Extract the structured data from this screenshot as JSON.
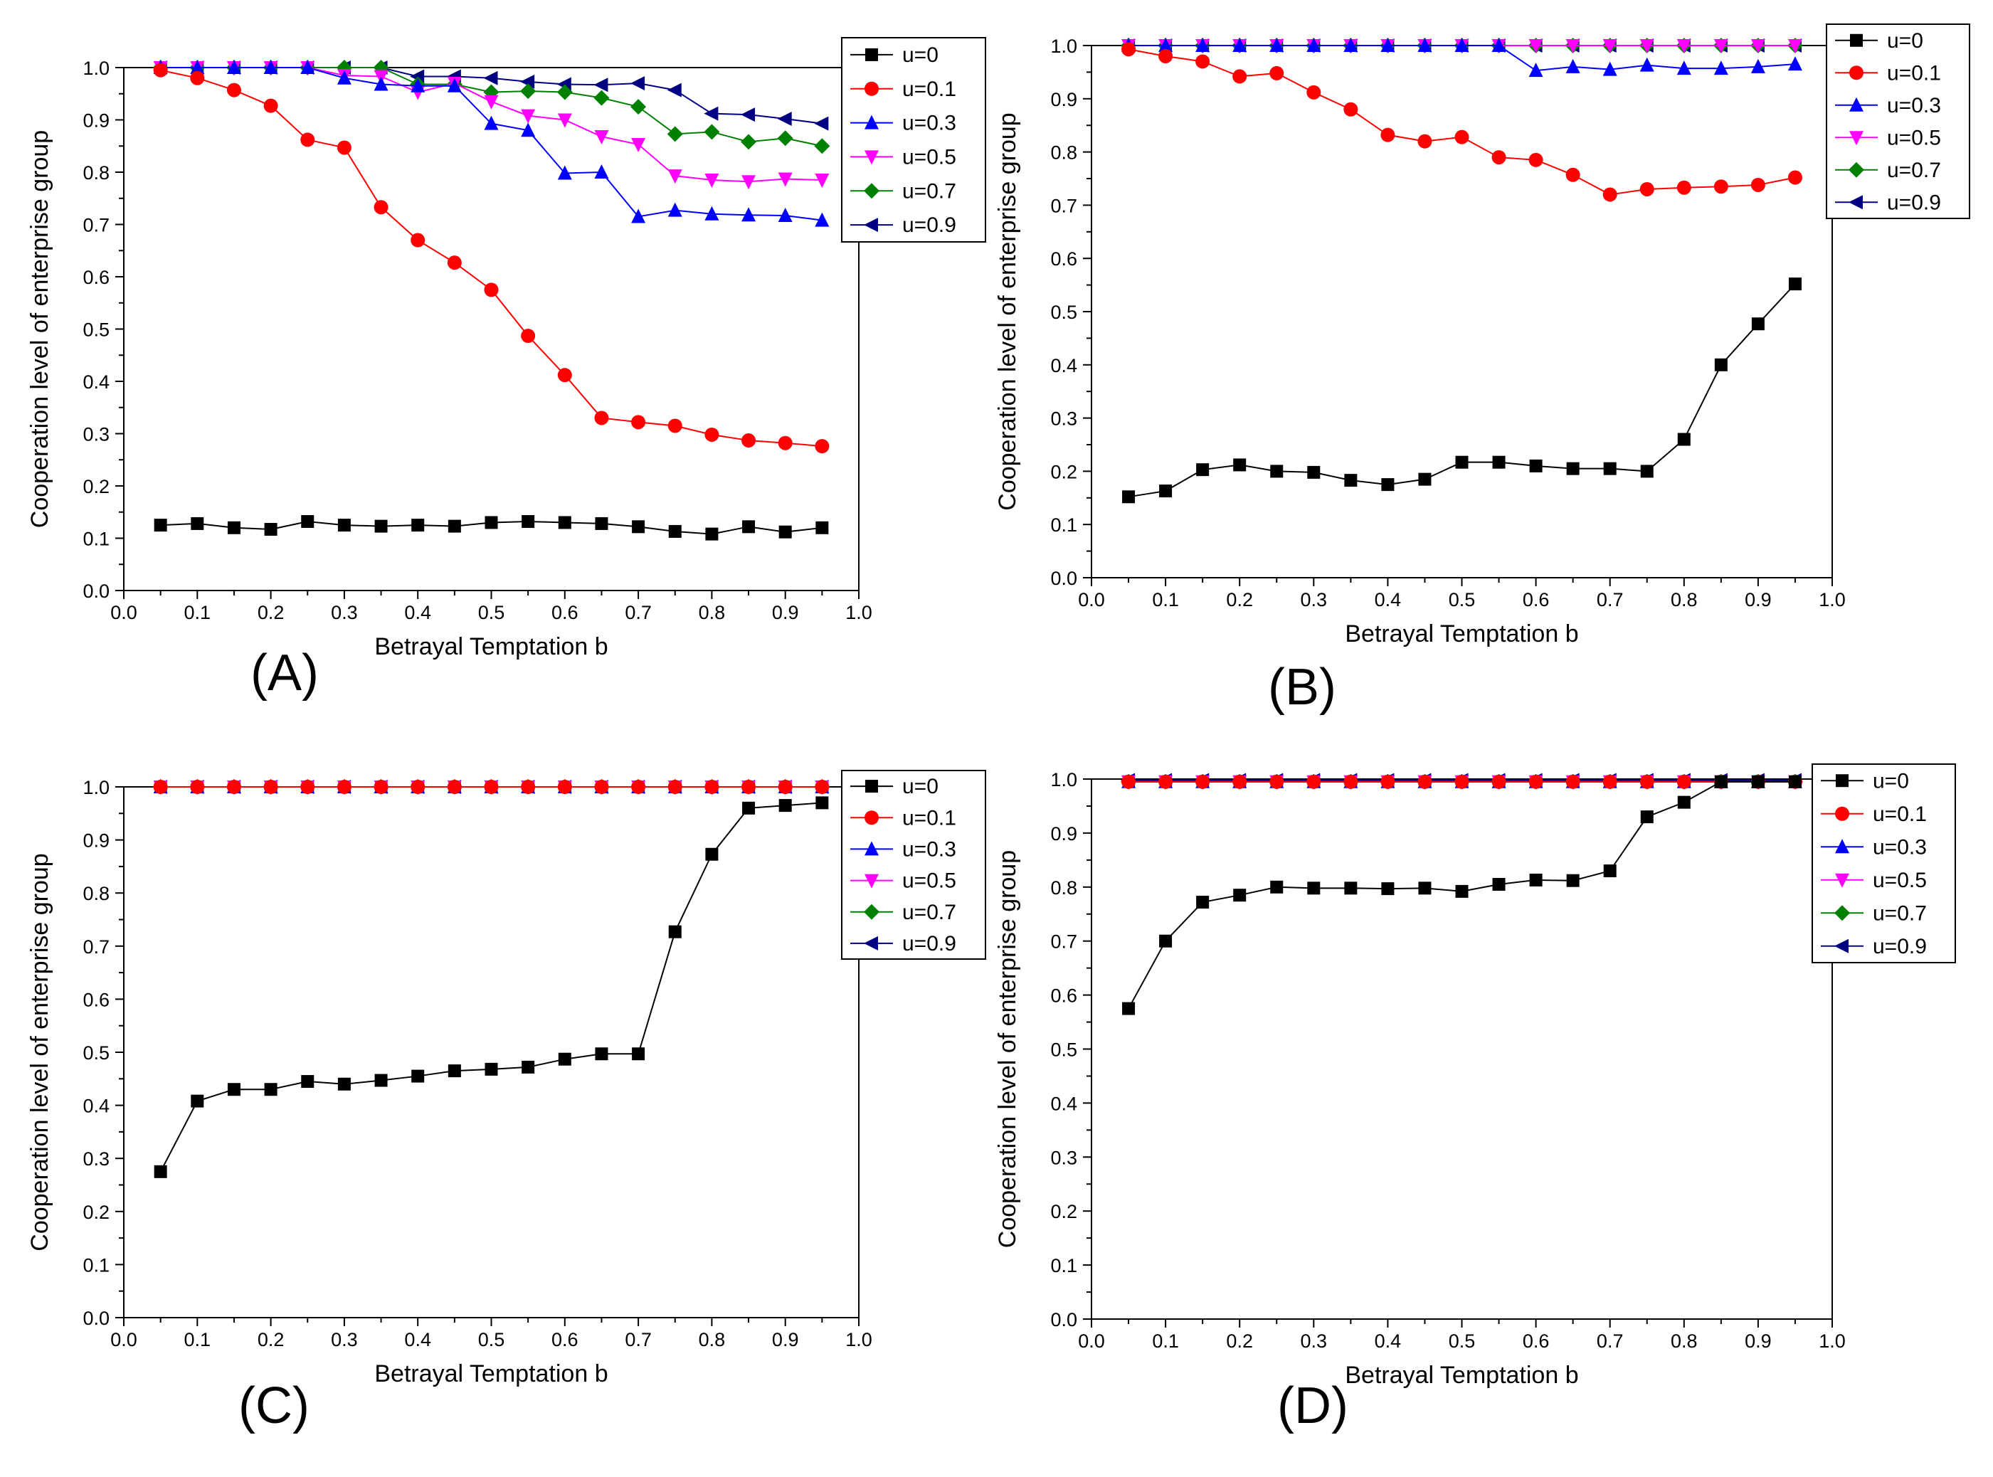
{
  "figure": {
    "type": "multi-panel line chart",
    "panels": 4
  },
  "chart_data": [
    {
      "type": "line",
      "panel_label": "(A)",
      "xlabel": "Betrayal Temptation b",
      "ylabel": "Cooperation level of enterprise group",
      "xlim": [
        0.0,
        1.0
      ],
      "ylim": [
        0.0,
        1.0
      ],
      "xticks": [
        "0.0",
        "0.1",
        "0.2",
        "0.3",
        "0.4",
        "0.5",
        "0.6",
        "0.7",
        "0.8",
        "0.9",
        "1.0"
      ],
      "yticks": [
        "0.0",
        "0.1",
        "0.2",
        "0.3",
        "0.4",
        "0.5",
        "0.6",
        "0.7",
        "0.8",
        "0.9",
        "1.0"
      ],
      "legend": "top-right",
      "x": [
        0.05,
        0.1,
        0.15,
        0.2,
        0.25,
        0.3,
        0.35,
        0.4,
        0.45,
        0.5,
        0.55,
        0.6,
        0.65,
        0.7,
        0.75,
        0.8,
        0.85,
        0.9,
        0.95
      ],
      "series": [
        {
          "name": "u=0",
          "color": "#000000",
          "marker": "square",
          "values": [
            0.125,
            0.128,
            0.12,
            0.117,
            0.132,
            0.125,
            0.123,
            0.125,
            0.123,
            0.13,
            0.132,
            0.13,
            0.128,
            0.122,
            0.113,
            0.108,
            0.122,
            0.112,
            0.12
          ]
        },
        {
          "name": "u=0.1",
          "color": "#ff0000",
          "marker": "circle",
          "values": [
            0.995,
            0.98,
            0.957,
            0.927,
            0.862,
            0.847,
            0.733,
            0.67,
            0.627,
            0.575,
            0.487,
            0.412,
            0.33,
            0.322,
            0.315,
            0.298,
            0.287,
            0.282,
            0.276
          ]
        },
        {
          "name": "u=0.3",
          "color": "#0000ff",
          "marker": "triangle-up",
          "values": [
            1.0,
            1.0,
            1.0,
            1.0,
            1.0,
            0.98,
            0.968,
            0.965,
            0.965,
            0.893,
            0.88,
            0.798,
            0.8,
            0.715,
            0.727,
            0.72,
            0.718,
            0.717,
            0.708
          ]
        },
        {
          "name": "u=0.5",
          "color": "#ff00ff",
          "marker": "triangle-down",
          "values": [
            1.0,
            1.0,
            1.0,
            1.0,
            1.0,
            0.985,
            0.983,
            0.953,
            0.97,
            0.935,
            0.908,
            0.9,
            0.868,
            0.853,
            0.793,
            0.785,
            0.782,
            0.787,
            0.785
          ]
        },
        {
          "name": "u=0.7",
          "color": "#008000",
          "marker": "diamond",
          "values": [
            1.0,
            1.0,
            1.0,
            1.0,
            1.0,
            1.0,
            1.0,
            0.968,
            0.968,
            0.953,
            0.955,
            0.953,
            0.942,
            0.925,
            0.873,
            0.877,
            0.858,
            0.865,
            0.85
          ]
        },
        {
          "name": "u=0.9",
          "color": "#000080",
          "marker": "triangle-left",
          "values": [
            1.0,
            1.0,
            1.0,
            1.0,
            1.0,
            1.0,
            1.0,
            0.983,
            0.983,
            0.98,
            0.973,
            0.968,
            0.967,
            0.97,
            0.957,
            0.912,
            0.91,
            0.902,
            0.893
          ]
        }
      ]
    },
    {
      "type": "line",
      "panel_label": "(B)",
      "xlabel": "Betrayal Temptation b",
      "ylabel": "Cooperation level of enterprise group",
      "xlim": [
        0.0,
        1.0
      ],
      "ylim": [
        0.0,
        1.0
      ],
      "xticks": [
        "0.0",
        "0.1",
        "0.2",
        "0.3",
        "0.4",
        "0.5",
        "0.6",
        "0.7",
        "0.8",
        "0.9",
        "1.0"
      ],
      "yticks": [
        "0.0",
        "0.1",
        "0.2",
        "0.3",
        "0.4",
        "0.5",
        "0.6",
        "0.7",
        "0.8",
        "0.9",
        "1.0"
      ],
      "legend": "top-right",
      "x": [
        0.05,
        0.1,
        0.15,
        0.2,
        0.25,
        0.3,
        0.35,
        0.4,
        0.45,
        0.5,
        0.55,
        0.6,
        0.65,
        0.7,
        0.75,
        0.8,
        0.85,
        0.9,
        0.95
      ],
      "series": [
        {
          "name": "u=0",
          "color": "#000000",
          "marker": "square",
          "values": [
            0.152,
            0.163,
            0.203,
            0.212,
            0.2,
            0.198,
            0.183,
            0.175,
            0.185,
            0.217,
            0.217,
            0.21,
            0.205,
            0.205,
            0.2,
            0.26,
            0.4,
            0.477,
            0.552
          ]
        },
        {
          "name": "u=0.1",
          "color": "#ff0000",
          "marker": "circle",
          "values": [
            0.993,
            0.98,
            0.97,
            0.942,
            0.948,
            0.912,
            0.88,
            0.832,
            0.82,
            0.828,
            0.79,
            0.785,
            0.757,
            0.72,
            0.73,
            0.733,
            0.735,
            0.738,
            0.752
          ]
        },
        {
          "name": "u=0.3",
          "color": "#0000ff",
          "marker": "triangle-up",
          "values": [
            1.0,
            1.0,
            1.0,
            1.0,
            1.0,
            1.0,
            1.0,
            1.0,
            1.0,
            1.0,
            1.0,
            0.953,
            0.96,
            0.955,
            0.963,
            0.957,
            0.957,
            0.96,
            0.965
          ]
        },
        {
          "name": "u=0.5",
          "color": "#ff00ff",
          "marker": "triangle-down",
          "values": [
            1.0,
            1.0,
            1.0,
            1.0,
            1.0,
            1.0,
            1.0,
            1.0,
            1.0,
            1.0,
            1.0,
            1.0,
            1.0,
            1.0,
            1.0,
            1.0,
            1.0,
            1.0,
            1.0
          ]
        },
        {
          "name": "u=0.7",
          "color": "#008000",
          "marker": "diamond",
          "values": [
            1.0,
            1.0,
            1.0,
            1.0,
            1.0,
            1.0,
            1.0,
            1.0,
            1.0,
            1.0,
            1.0,
            1.0,
            1.0,
            1.0,
            1.0,
            1.0,
            1.0,
            1.0,
            1.0
          ]
        },
        {
          "name": "u=0.9",
          "color": "#000080",
          "marker": "triangle-left",
          "values": [
            1.0,
            1.0,
            1.0,
            1.0,
            1.0,
            1.0,
            1.0,
            1.0,
            1.0,
            1.0,
            1.0,
            1.0,
            1.0,
            1.0,
            1.0,
            1.0,
            1.0,
            1.0,
            1.0
          ]
        }
      ]
    },
    {
      "type": "line",
      "panel_label": "(C)",
      "xlabel": "Betrayal Temptation b",
      "ylabel": "Cooperation level of enterprise group",
      "xlim": [
        0.0,
        1.0
      ],
      "ylim": [
        0.0,
        1.0
      ],
      "xticks": [
        "0.0",
        "0.1",
        "0.2",
        "0.3",
        "0.4",
        "0.5",
        "0.6",
        "0.7",
        "0.8",
        "0.9",
        "1.0"
      ],
      "yticks": [
        "0.0",
        "0.1",
        "0.2",
        "0.3",
        "0.4",
        "0.5",
        "0.6",
        "0.7",
        "0.8",
        "0.9",
        "1.0"
      ],
      "legend": "top-right",
      "x": [
        0.05,
        0.1,
        0.15,
        0.2,
        0.25,
        0.3,
        0.35,
        0.4,
        0.45,
        0.5,
        0.55,
        0.6,
        0.65,
        0.7,
        0.75,
        0.8,
        0.85,
        0.9,
        0.95
      ],
      "series": [
        {
          "name": "u=0",
          "color": "#000000",
          "marker": "square",
          "values": [
            0.275,
            0.408,
            0.43,
            0.43,
            0.445,
            0.44,
            0.447,
            0.455,
            0.465,
            0.468,
            0.472,
            0.487,
            0.497,
            0.497,
            0.727,
            0.873,
            0.96,
            0.965,
            0.97
          ]
        },
        {
          "name": "u=0.1",
          "color": "#ff0000",
          "marker": "circle",
          "values": [
            1.0,
            1.0,
            1.0,
            1.0,
            1.0,
            1.0,
            1.0,
            1.0,
            1.0,
            1.0,
            1.0,
            1.0,
            1.0,
            1.0,
            1.0,
            1.0,
            1.0,
            1.0,
            1.0
          ]
        },
        {
          "name": "u=0.3",
          "color": "#0000ff",
          "marker": "triangle-up",
          "values": [
            1.0,
            1.0,
            1.0,
            1.0,
            1.0,
            1.0,
            1.0,
            1.0,
            1.0,
            1.0,
            1.0,
            1.0,
            1.0,
            1.0,
            1.0,
            1.0,
            1.0,
            1.0,
            1.0
          ]
        },
        {
          "name": "u=0.5",
          "color": "#ff00ff",
          "marker": "triangle-down",
          "values": [
            1.0,
            1.0,
            1.0,
            1.0,
            1.0,
            1.0,
            1.0,
            1.0,
            1.0,
            1.0,
            1.0,
            1.0,
            1.0,
            1.0,
            1.0,
            1.0,
            1.0,
            1.0,
            1.0
          ]
        },
        {
          "name": "u=0.7",
          "color": "#008000",
          "marker": "diamond",
          "values": [
            1.0,
            1.0,
            1.0,
            1.0,
            1.0,
            1.0,
            1.0,
            1.0,
            1.0,
            1.0,
            1.0,
            1.0,
            1.0,
            1.0,
            1.0,
            1.0,
            1.0,
            1.0,
            1.0
          ]
        },
        {
          "name": "u=0.9",
          "color": "#000080",
          "marker": "triangle-left",
          "values": [
            1.0,
            1.0,
            1.0,
            1.0,
            1.0,
            1.0,
            1.0,
            1.0,
            1.0,
            1.0,
            1.0,
            1.0,
            1.0,
            1.0,
            1.0,
            1.0,
            1.0,
            1.0,
            1.0
          ]
        }
      ]
    },
    {
      "type": "line",
      "panel_label": "(D)",
      "xlabel": "Betrayal Temptation b",
      "ylabel": "Cooperation level of enterprise group",
      "xlim": [
        0.0,
        1.0
      ],
      "ylim": [
        0.0,
        1.0
      ],
      "xticks": [
        "0.0",
        "0.1",
        "0.2",
        "0.3",
        "0.4",
        "0.5",
        "0.6",
        "0.7",
        "0.8",
        "0.9",
        "1.0"
      ],
      "yticks": [
        "0.0",
        "0.1",
        "0.2",
        "0.3",
        "0.4",
        "0.5",
        "0.6",
        "0.7",
        "0.8",
        "0.9",
        "1.0"
      ],
      "legend": "top-right",
      "x": [
        0.05,
        0.1,
        0.15,
        0.2,
        0.25,
        0.3,
        0.35,
        0.4,
        0.45,
        0.5,
        0.55,
        0.6,
        0.65,
        0.7,
        0.75,
        0.8,
        0.85,
        0.9,
        0.95
      ],
      "series": [
        {
          "name": "u=0",
          "color": "#000000",
          "marker": "square",
          "values": [
            0.575,
            0.7,
            0.772,
            0.785,
            0.8,
            0.798,
            0.798,
            0.797,
            0.798,
            0.792,
            0.805,
            0.813,
            0.812,
            0.83,
            0.93,
            0.957,
            0.995,
            0.995,
            0.995
          ]
        },
        {
          "name": "u=0.1",
          "color": "#ff0000",
          "marker": "circle",
          "values": [
            0.995,
            0.995,
            0.995,
            0.995,
            0.995,
            0.995,
            0.995,
            0.995,
            0.995,
            0.995,
            0.995,
            0.995,
            0.995,
            0.995,
            0.995,
            0.995,
            0.995,
            0.995,
            0.995
          ]
        },
        {
          "name": "u=0.3",
          "color": "#0000ff",
          "marker": "triangle-up",
          "values": [
            0.995,
            0.995,
            0.995,
            0.995,
            0.995,
            0.995,
            0.995,
            0.995,
            0.995,
            0.995,
            0.995,
            0.995,
            0.995,
            0.995,
            0.995,
            0.995,
            0.995,
            0.995,
            0.995
          ]
        },
        {
          "name": "u=0.5",
          "color": "#ff00ff",
          "marker": "triangle-down",
          "values": [
            0.995,
            0.995,
            0.995,
            0.995,
            0.995,
            0.995,
            0.995,
            0.995,
            0.995,
            0.995,
            0.995,
            0.995,
            0.995,
            0.995,
            0.995,
            0.995,
            0.995,
            0.995,
            0.995
          ]
        },
        {
          "name": "u=0.7",
          "color": "#008000",
          "marker": "diamond",
          "values": [
            0.995,
            0.995,
            0.995,
            0.995,
            0.995,
            0.995,
            0.995,
            0.995,
            0.995,
            0.995,
            0.995,
            0.995,
            0.995,
            0.995,
            0.995,
            0.995,
            0.995,
            0.995,
            0.995
          ]
        },
        {
          "name": "u=0.9",
          "color": "#000080",
          "marker": "triangle-left",
          "values": [
            0.998,
            0.998,
            0.998,
            0.998,
            0.998,
            0.998,
            0.998,
            0.998,
            0.998,
            0.998,
            0.998,
            0.998,
            0.998,
            0.998,
            0.998,
            0.998,
            0.998,
            0.998,
            0.998
          ]
        }
      ]
    }
  ]
}
